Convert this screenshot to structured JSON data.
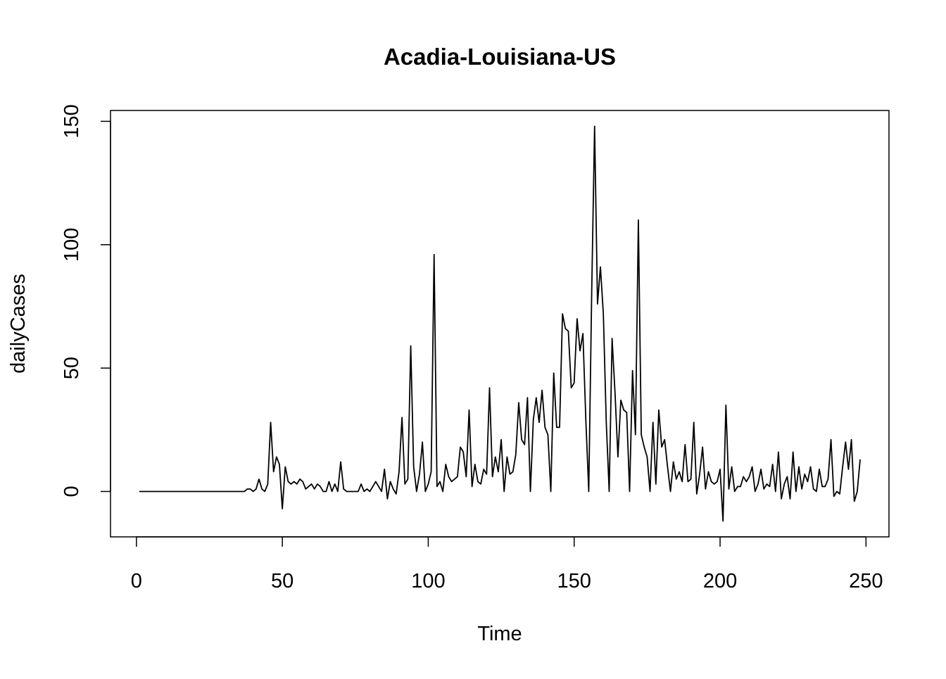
{
  "chart_data": {
    "type": "line",
    "title": "Acadia-Louisiana-US",
    "x_label": "Time",
    "y_label": "dailyCases",
    "x": [
      1,
      2,
      3,
      4,
      5,
      6,
      7,
      8,
      9,
      10,
      11,
      12,
      13,
      14,
      15,
      16,
      17,
      18,
      19,
      20,
      21,
      22,
      23,
      24,
      25,
      26,
      27,
      28,
      29,
      30,
      31,
      32,
      33,
      34,
      35,
      36,
      37,
      38,
      39,
      40,
      41,
      42,
      43,
      44,
      45,
      46,
      47,
      48,
      49,
      50,
      51,
      52,
      53,
      54,
      55,
      56,
      57,
      58,
      59,
      60,
      61,
      62,
      63,
      64,
      65,
      66,
      67,
      68,
      69,
      70,
      71,
      72,
      73,
      74,
      75,
      76,
      77,
      78,
      79,
      80,
      81,
      82,
      83,
      84,
      85,
      86,
      87,
      88,
      89,
      90,
      91,
      92,
      93,
      94,
      95,
      96,
      97,
      98,
      99,
      100,
      101,
      102,
      103,
      104,
      105,
      106,
      107,
      108,
      109,
      110,
      111,
      112,
      113,
      114,
      115,
      116,
      117,
      118,
      119,
      120,
      121,
      122,
      123,
      124,
      125,
      126,
      127,
      128,
      129,
      130,
      131,
      132,
      133,
      134,
      135,
      136,
      137,
      138,
      139,
      140,
      141,
      142,
      143,
      144,
      145,
      146,
      147,
      148,
      149,
      150,
      151,
      152,
      153,
      154,
      155,
      156,
      157,
      158,
      159,
      160,
      161,
      162,
      163,
      164,
      165,
      166,
      167,
      168,
      169,
      170,
      171,
      172,
      173,
      174,
      175,
      176,
      177,
      178,
      179,
      180,
      181,
      182,
      183,
      184,
      185,
      186,
      187,
      188,
      189,
      190,
      191,
      192,
      193,
      194,
      195,
      196,
      197,
      198,
      199,
      200,
      201,
      202,
      203,
      204,
      205,
      206,
      207,
      208,
      209,
      210,
      211,
      212,
      213,
      214,
      215,
      216,
      217,
      218,
      219,
      220,
      221,
      222,
      223,
      224,
      225,
      226,
      227,
      228,
      229,
      230,
      231,
      232,
      233,
      234,
      235,
      236,
      237,
      238,
      239,
      240,
      241,
      242,
      243,
      244,
      245,
      246,
      247,
      248
    ],
    "values": [
      0,
      0,
      0,
      0,
      0,
      0,
      0,
      0,
      0,
      0,
      0,
      0,
      0,
      0,
      0,
      0,
      0,
      0,
      0,
      0,
      0,
      0,
      0,
      0,
      0,
      0,
      0,
      0,
      0,
      0,
      0,
      0,
      0,
      0,
      0,
      0,
      0,
      1,
      1,
      0,
      1,
      5,
      1,
      0,
      3,
      28,
      8,
      14,
      11,
      -7,
      10,
      4,
      3,
      4,
      3,
      5,
      4,
      1,
      2,
      3,
      1,
      3,
      2,
      0,
      0,
      4,
      0,
      3,
      0,
      12,
      1,
      0,
      0,
      0,
      0,
      0,
      3,
      0,
      1,
      0,
      2,
      4,
      2,
      0,
      9,
      -3,
      4,
      1,
      -1,
      8,
      30,
      3,
      5,
      59,
      10,
      0,
      7,
      20,
      0,
      3,
      8,
      96,
      2,
      4,
      0,
      11,
      6,
      4,
      5,
      6,
      18,
      16,
      6,
      33,
      2,
      11,
      4,
      3,
      9,
      7,
      42,
      6,
      14,
      8,
      21,
      0,
      14,
      7,
      8,
      15,
      36,
      21,
      19,
      38,
      0,
      29,
      38,
      28,
      41,
      26,
      23,
      0,
      48,
      26,
      26,
      72,
      66,
      65,
      42,
      44,
      70,
      57,
      64,
      29,
      0,
      80,
      148,
      76,
      91,
      72,
      28,
      0,
      62,
      40,
      14,
      37,
      33,
      32,
      0,
      49,
      23,
      110,
      23,
      18,
      14,
      0,
      28,
      3,
      33,
      18,
      21,
      10,
      0,
      12,
      5,
      8,
      4,
      19,
      4,
      5,
      28,
      -1,
      7,
      18,
      1,
      8,
      4,
      3,
      4,
      9,
      -12,
      35,
      1,
      10,
      0,
      2,
      2,
      6,
      4,
      6,
      10,
      0,
      3,
      9,
      1,
      3,
      2,
      11,
      0,
      16,
      -3,
      3,
      6,
      -3,
      16,
      0,
      10,
      1,
      7,
      4,
      10,
      1,
      0,
      9,
      2,
      2,
      5,
      21,
      -2,
      0,
      -1,
      10,
      20,
      9,
      21,
      -4,
      0,
      13
    ],
    "color": "#000000",
    "xlim": [
      -8.88,
      257.88
    ],
    "ylim": [
      -18.4,
      154.4
    ],
    "xticks": [
      0,
      50,
      100,
      150,
      200,
      250
    ],
    "yticks": [
      0,
      50,
      100,
      150
    ]
  }
}
